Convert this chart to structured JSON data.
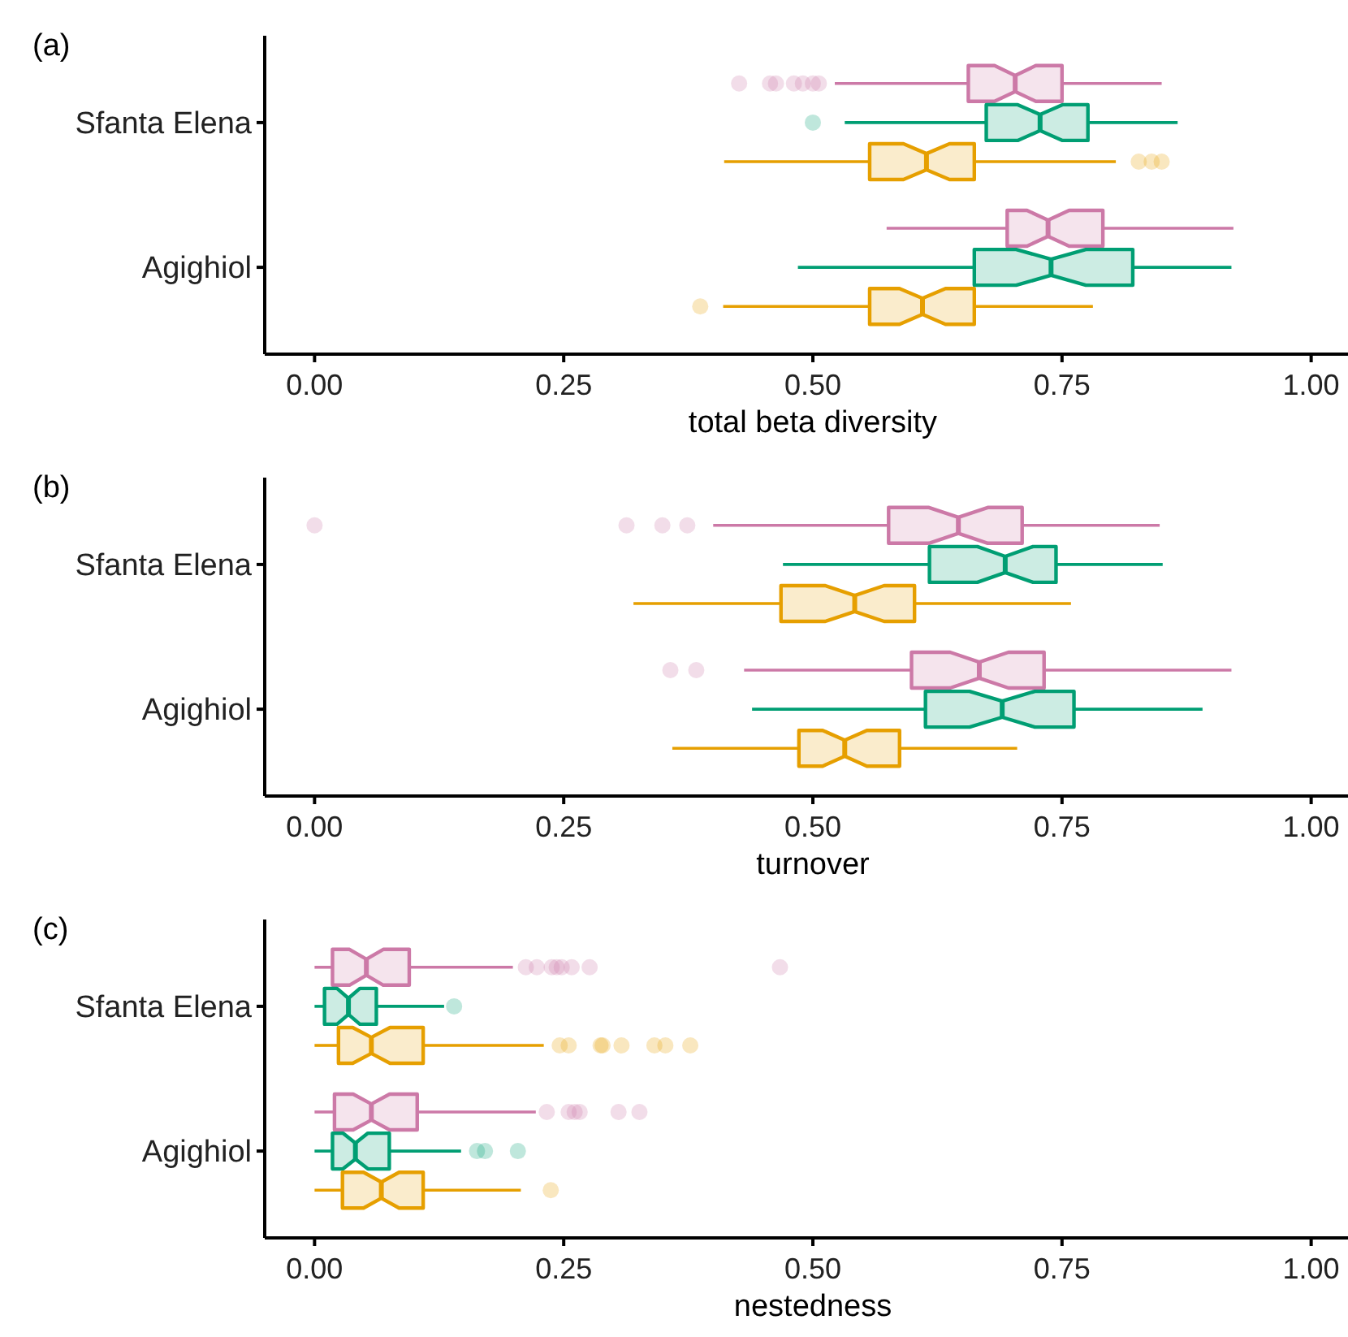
{
  "chart_data": [
    {
      "type": "box",
      "title": "(a)",
      "xlabel": "total beta diversity",
      "orientation": "horizontal",
      "categories": [
        "Sfanta Elena",
        "Agighiol"
      ],
      "xlim": [
        -0.05,
        1.05
      ],
      "xticks": [
        {
          "value": 0,
          "label": "0.00"
        },
        {
          "value": 0.25,
          "label": "0.25"
        },
        {
          "value": 0.5,
          "label": "0.50"
        },
        {
          "value": 0.75,
          "label": "0.75"
        },
        {
          "value": 1,
          "label": "1.00"
        }
      ],
      "series": [
        {
          "color": "#cc79a7",
          "boxes": [
            {
              "low": 0.522,
              "q1": 0.656,
              "median": 0.703,
              "q3": 0.75,
              "high": 0.85,
              "outliers": [
                0.426,
                0.457,
                0.463,
                0.481,
                0.49,
                0.5,
                0.506
              ]
            },
            {
              "low": 0.574,
              "q1": 0.695,
              "median": 0.736,
              "q3": 0.791,
              "high": 0.922
            }
          ]
        },
        {
          "color": "#009e73",
          "boxes": [
            {
              "low": 0.532,
              "q1": 0.674,
              "median": 0.728,
              "q3": 0.776,
              "high": 0.866,
              "outliers": [
                0.5
              ]
            },
            {
              "low": 0.485,
              "q1": 0.662,
              "median": 0.739,
              "q3": 0.821,
              "high": 0.92
            }
          ]
        },
        {
          "color": "#e69f00",
          "boxes": [
            {
              "low": 0.411,
              "q1": 0.557,
              "median": 0.614,
              "q3": 0.662,
              "high": 0.804,
              "outliers": [
                0.827,
                0.84,
                0.85
              ]
            },
            {
              "low": 0.41,
              "q1": 0.557,
              "median": 0.61,
              "q3": 0.662,
              "high": 0.781,
              "outliers": [
                0.387
              ]
            }
          ]
        }
      ]
    },
    {
      "type": "box",
      "title": "(b)",
      "xlabel": "turnover",
      "orientation": "horizontal",
      "categories": [
        "Sfanta Elena",
        "Agighiol"
      ],
      "xlim": [
        -0.05,
        1.05
      ],
      "xticks": [
        {
          "value": 0,
          "label": "0.00"
        },
        {
          "value": 0.25,
          "label": "0.25"
        },
        {
          "value": 0.5,
          "label": "0.50"
        },
        {
          "value": 0.75,
          "label": "0.75"
        },
        {
          "value": 1,
          "label": "1.00"
        }
      ],
      "series": [
        {
          "color": "#cc79a7",
          "boxes": [
            {
              "low": 0.4,
              "q1": 0.576,
              "median": 0.646,
              "q3": 0.71,
              "high": 0.848,
              "outliers": [
                0,
                0.313,
                0.349,
                0.374
              ]
            },
            {
              "low": 0.431,
              "q1": 0.599,
              "median": 0.667,
              "q3": 0.732,
              "high": 0.92,
              "outliers": [
                0.357,
                0.383
              ]
            }
          ]
        },
        {
          "color": "#009e73",
          "boxes": [
            {
              "low": 0.47,
              "q1": 0.617,
              "median": 0.693,
              "q3": 0.744,
              "high": 0.851
            },
            {
              "low": 0.439,
              "q1": 0.613,
              "median": 0.69,
              "q3": 0.762,
              "high": 0.891
            }
          ]
        },
        {
          "color": "#e69f00",
          "boxes": [
            {
              "low": 0.32,
              "q1": 0.468,
              "median": 0.542,
              "q3": 0.602,
              "high": 0.759
            },
            {
              "low": 0.359,
              "q1": 0.486,
              "median": 0.532,
              "q3": 0.587,
              "high": 0.705
            }
          ]
        }
      ]
    },
    {
      "type": "box",
      "title": "(c)",
      "xlabel": "nestedness",
      "orientation": "horizontal",
      "categories": [
        "Sfanta Elena",
        "Agighiol"
      ],
      "xlim": [
        -0.05,
        1.05
      ],
      "xticks": [
        {
          "value": 0,
          "label": "0.00"
        },
        {
          "value": 0.25,
          "label": "0.25"
        },
        {
          "value": 0.5,
          "label": "0.50"
        },
        {
          "value": 0.75,
          "label": "0.75"
        },
        {
          "value": 1,
          "label": "1.00"
        }
      ],
      "series": [
        {
          "color": "#cc79a7",
          "boxes": [
            {
              "low": 0,
              "q1": 0.018,
              "median": 0.052,
              "q3": 0.095,
              "high": 0.199,
              "outliers": [
                0.212,
                0.223,
                0.238,
                0.243,
                0.248,
                0.258,
                0.276,
                0.467
              ]
            },
            {
              "low": 0,
              "q1": 0.02,
              "median": 0.057,
              "q3": 0.103,
              "high": 0.222,
              "outliers": [
                0.233,
                0.255,
                0.261,
                0.266,
                0.305,
                0.326
              ]
            }
          ]
        },
        {
          "color": "#009e73",
          "boxes": [
            {
              "low": 0,
              "q1": 0.01,
              "median": 0.034,
              "q3": 0.062,
              "high": 0.13,
              "outliers": [
                0.14
              ]
            },
            {
              "low": 0,
              "q1": 0.018,
              "median": 0.041,
              "q3": 0.075,
              "high": 0.147,
              "outliers": [
                0.163,
                0.171,
                0.204
              ]
            }
          ]
        },
        {
          "color": "#e69f00",
          "boxes": [
            {
              "low": 0,
              "q1": 0.024,
              "median": 0.057,
              "q3": 0.109,
              "high": 0.23,
              "outliers": [
                0.246,
                0.255,
                0.287,
                0.289,
                0.308,
                0.341,
                0.352,
                0.377
              ]
            },
            {
              "low": 0,
              "q1": 0.028,
              "median": 0.067,
              "q3": 0.109,
              "high": 0.207,
              "outliers": [
                0.237
              ]
            }
          ]
        }
      ]
    }
  ]
}
